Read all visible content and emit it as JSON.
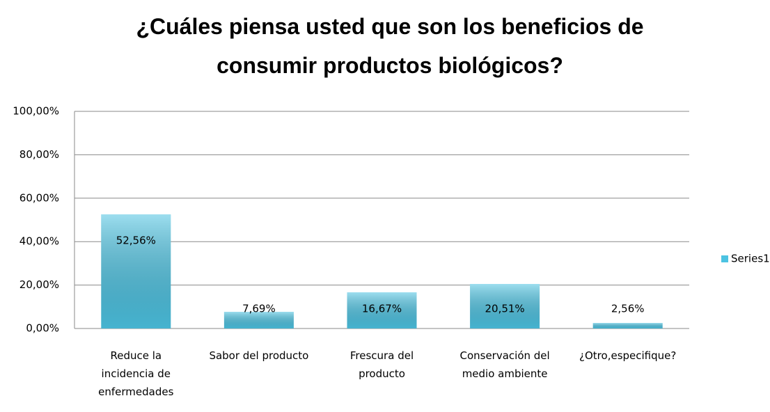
{
  "chart_data": {
    "type": "bar",
    "title": "¿Cuáles piensa usted que son los beneficios de consumir productos biológicos?",
    "categories": [
      "Reduce la incidencia de enfermedades",
      "Sabor del producto",
      "Frescura del producto",
      "Conservación del medio ambiente",
      "¿Otro,especifique?"
    ],
    "series": [
      {
        "name": "Series1",
        "color": "#4cc3e2",
        "values": [
          52.56,
          7.69,
          16.67,
          20.51,
          2.56
        ],
        "value_labels": [
          "52,56%",
          "7,69%",
          "16,67%",
          "20,51%",
          "2,56%"
        ]
      }
    ],
    "ylim": [
      0,
      100
    ],
    "yticks": [
      {
        "value": 0,
        "label": "0,00%"
      },
      {
        "value": 20,
        "label": "20,00%"
      },
      {
        "value": 40,
        "label": "40,00%"
      },
      {
        "value": 60,
        "label": "60,00%"
      },
      {
        "value": 80,
        "label": "80,00%"
      },
      {
        "value": 100,
        "label": "100,00%"
      }
    ],
    "grid": true,
    "legend": "right"
  }
}
